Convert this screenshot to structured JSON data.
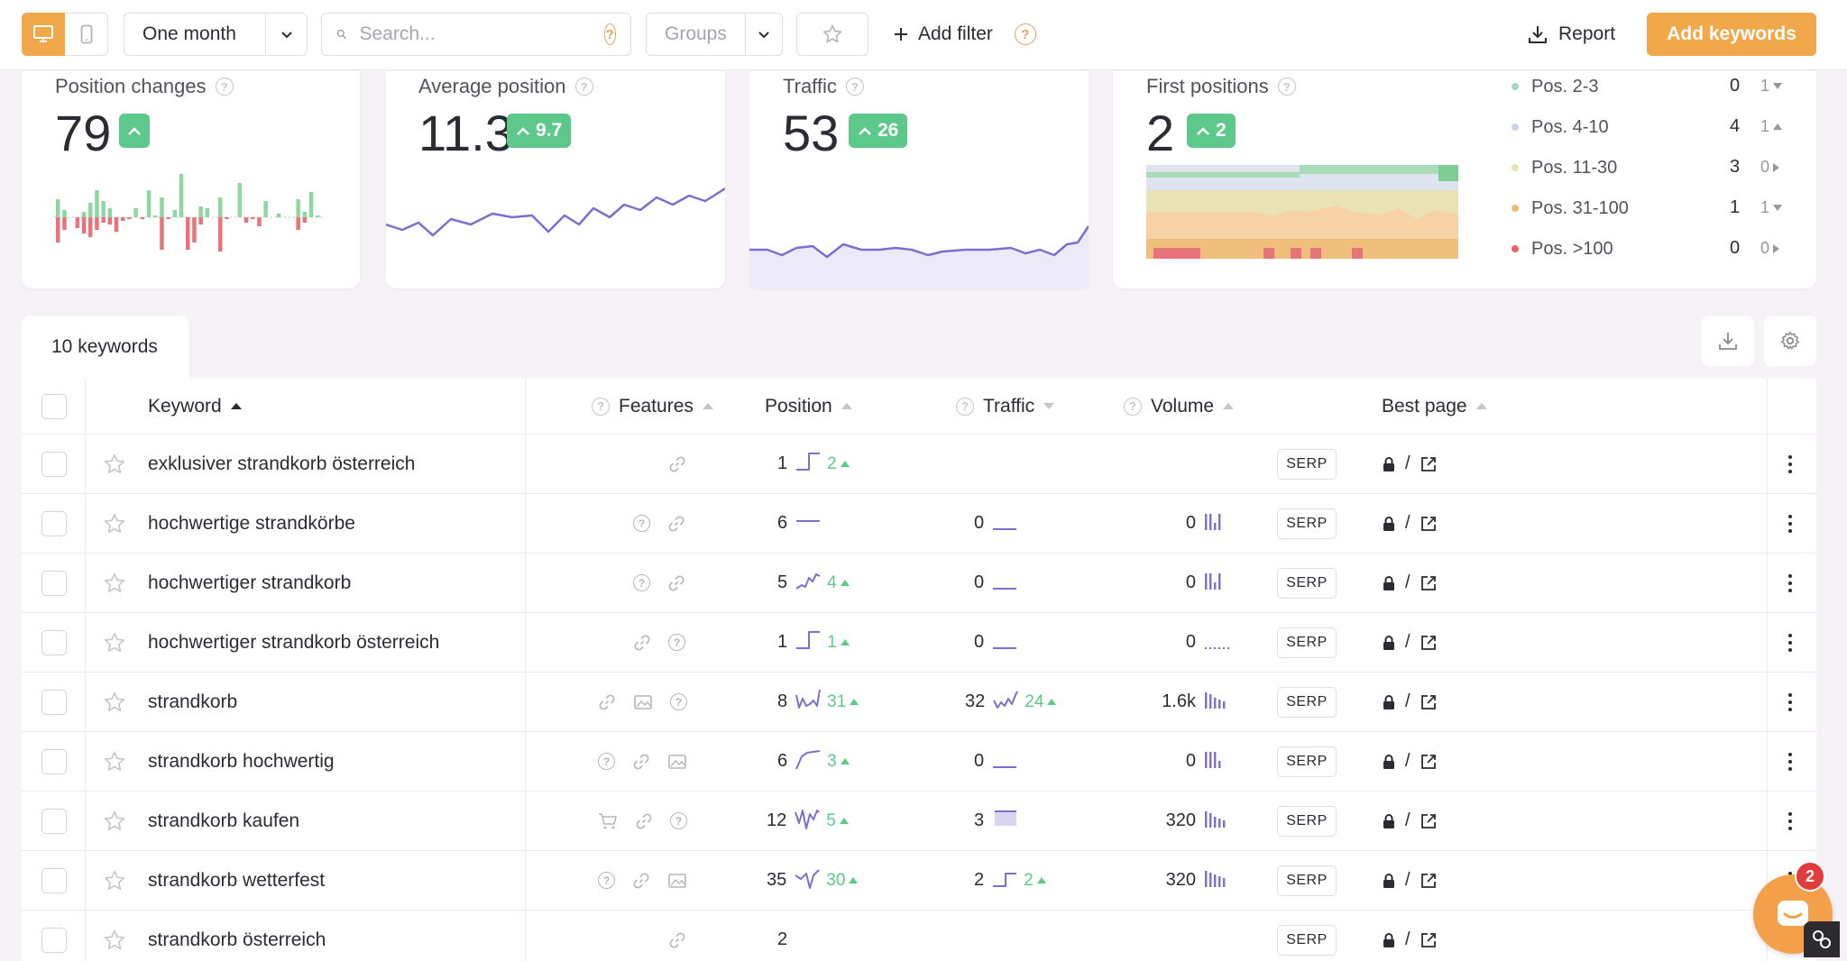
{
  "toolbar": {
    "period": "One month",
    "search_placeholder": "Search...",
    "groups_placeholder": "Groups",
    "add_filter": "Add filter",
    "report": "Report",
    "add_keywords": "Add keywords"
  },
  "cards": {
    "position_changes": {
      "title": "Position changes",
      "value": "79"
    },
    "average_position": {
      "title": "Average position",
      "value": "11.3",
      "delta": "9.7"
    },
    "traffic": {
      "title": "Traffic",
      "value": "53",
      "delta": "26"
    },
    "first_positions": {
      "title": "First positions",
      "value": "2",
      "delta": "2"
    }
  },
  "position_legend": [
    {
      "label": "Pos. 2-3",
      "count": "0",
      "change": "1",
      "direction": "down",
      "color": "#a8d5c5"
    },
    {
      "label": "Pos. 4-10",
      "count": "4",
      "change": "1",
      "direction": "up",
      "color": "#c9d2e6"
    },
    {
      "label": "Pos. 11-30",
      "count": "3",
      "change": "0",
      "direction": "right",
      "color": "#e9e2b4"
    },
    {
      "label": "Pos. 31-100",
      "count": "1",
      "change": "1",
      "direction": "down",
      "color": "#f0b87a"
    },
    {
      "label": "Pos. >100",
      "count": "0",
      "change": "0",
      "direction": "right",
      "color": "#e8626a"
    }
  ],
  "table": {
    "tab_label": "10 keywords",
    "headers": {
      "keyword": "Keyword",
      "features": "Features",
      "position": "Position",
      "traffic": "Traffic",
      "volume": "Volume",
      "best_page": "Best page"
    },
    "serp_label": "SERP",
    "best_page_path": "/",
    "rows": [
      {
        "keyword": "exklusiver strandkorb österreich",
        "features": [
          "link"
        ],
        "position": "1",
        "pos_delta": "2",
        "traffic": "",
        "traffic_delta": "",
        "volume": ""
      },
      {
        "keyword": "hochwertige strandkörbe",
        "features": [
          "help",
          "link"
        ],
        "position": "6",
        "pos_delta": "",
        "traffic": "0",
        "traffic_delta": "",
        "volume": "0"
      },
      {
        "keyword": "hochwertiger strandkorb",
        "features": [
          "help",
          "link"
        ],
        "position": "5",
        "pos_delta": "4",
        "traffic": "0",
        "traffic_delta": "",
        "volume": "0"
      },
      {
        "keyword": "hochwertiger strandkorb österreich",
        "features": [
          "link",
          "help"
        ],
        "position": "1",
        "pos_delta": "1",
        "traffic": "0",
        "traffic_delta": "",
        "volume": "0"
      },
      {
        "keyword": "strandkorb",
        "features": [
          "link",
          "image",
          "help"
        ],
        "position": "8",
        "pos_delta": "31",
        "traffic": "32",
        "traffic_delta": "24",
        "volume": "1.6k"
      },
      {
        "keyword": "strandkorb hochwertig",
        "features": [
          "help",
          "link",
          "image"
        ],
        "position": "6",
        "pos_delta": "3",
        "traffic": "0",
        "traffic_delta": "",
        "volume": "0"
      },
      {
        "keyword": "strandkorb kaufen",
        "features": [
          "cart",
          "link",
          "help"
        ],
        "position": "12",
        "pos_delta": "5",
        "traffic": "3",
        "traffic_delta": "",
        "volume": "320"
      },
      {
        "keyword": "strandkorb wetterfest",
        "features": [
          "help",
          "link",
          "image"
        ],
        "position": "35",
        "pos_delta": "30",
        "traffic": "2",
        "traffic_delta": "2",
        "volume": "320"
      },
      {
        "keyword": "strandkorb österreich",
        "features": [
          "link"
        ],
        "position": "2",
        "pos_delta": "",
        "traffic": "",
        "traffic_delta": "",
        "volume": ""
      }
    ]
  },
  "chat": {
    "badge": "2"
  },
  "colors": {
    "accent": "#f1a84a",
    "positive": "#5cc98a",
    "negative": "#e8737a",
    "line": "#7b6fcf"
  }
}
